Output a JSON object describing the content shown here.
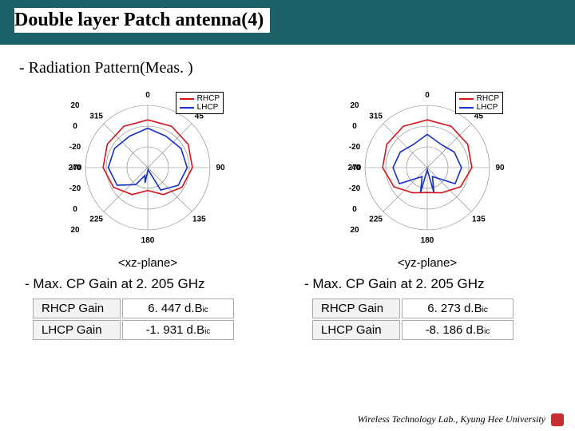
{
  "title": "Double layer Patch antenna(4)",
  "subtitle": "- Radiation Pattern(Meas. )",
  "colors": {
    "header_bg": "#1d6168",
    "rhcp": "#d4141a",
    "lhcp": "#1430c8",
    "grid": "#808080",
    "axis_text": "#000000"
  },
  "legend": {
    "rhcp": "RHCP",
    "lhcp": "LHCP"
  },
  "polar": {
    "angle_labels": [
      "0",
      "45",
      "90",
      "135",
      "180",
      "225",
      "270",
      "315"
    ],
    "radial_labels_left": [
      "20",
      "0",
      "-20",
      "-40",
      "-40",
      "-20",
      "0",
      "20"
    ],
    "radial_ticks": [
      -40,
      -20,
      0,
      20
    ],
    "rlim": [
      -40,
      20
    ],
    "label_fontsize": 10
  },
  "charts": {
    "xz": {
      "plane_label": "<xz-plane>",
      "gain_title": "- Max. CP Gain at 2. 205 GHz",
      "rhcp_label": "RHCP Gain",
      "rhcp_value": "6. 447 d.B",
      "rhcp_unit": "ic",
      "lhcp_label": "LHCP Gain",
      "lhcp_value": "-1. 931 d.B",
      "lhcp_unit": "ic",
      "rhcp_data": [
        {
          "ang": 0,
          "r": 6
        },
        {
          "ang": 30,
          "r": 6
        },
        {
          "ang": 60,
          "r": 5
        },
        {
          "ang": 90,
          "r": 3
        },
        {
          "ang": 120,
          "r": -2
        },
        {
          "ang": 150,
          "r": -10
        },
        {
          "ang": 180,
          "r": -18
        },
        {
          "ang": 210,
          "r": -10
        },
        {
          "ang": 240,
          "r": -2
        },
        {
          "ang": 270,
          "r": 3
        },
        {
          "ang": 300,
          "r": 5
        },
        {
          "ang": 330,
          "r": 6
        },
        {
          "ang": 360,
          "r": 6
        }
      ],
      "lhcp_data": [
        {
          "ang": 0,
          "r": -2
        },
        {
          "ang": 30,
          "r": -5
        },
        {
          "ang": 60,
          "r": -3
        },
        {
          "ang": 90,
          "r": -2
        },
        {
          "ang": 120,
          "r": -6
        },
        {
          "ang": 150,
          "r": -15
        },
        {
          "ang": 170,
          "r": -38
        },
        {
          "ang": 190,
          "r": -25
        },
        {
          "ang": 200,
          "r": -32
        },
        {
          "ang": 215,
          "r": -20
        },
        {
          "ang": 240,
          "r": -6
        },
        {
          "ang": 270,
          "r": -2
        },
        {
          "ang": 300,
          "r": -3
        },
        {
          "ang": 330,
          "r": -5
        },
        {
          "ang": 360,
          "r": -2
        }
      ]
    },
    "yz": {
      "plane_label": "<yz-plane>",
      "gain_title": "- Max. CP Gain at 2. 205 GHz",
      "rhcp_label": "RHCP Gain",
      "rhcp_value": "6. 273 d.B",
      "rhcp_unit": "ic",
      "lhcp_label": "LHCP Gain",
      "lhcp_value": "-8. 186 d.B",
      "lhcp_unit": "ic",
      "rhcp_data": [
        {
          "ang": 0,
          "r": 6
        },
        {
          "ang": 30,
          "r": 6
        },
        {
          "ang": 60,
          "r": 5
        },
        {
          "ang": 90,
          "r": 3
        },
        {
          "ang": 120,
          "r": -3
        },
        {
          "ang": 150,
          "r": -12
        },
        {
          "ang": 180,
          "r": -16
        },
        {
          "ang": 210,
          "r": -12
        },
        {
          "ang": 240,
          "r": -3
        },
        {
          "ang": 270,
          "r": 3
        },
        {
          "ang": 300,
          "r": 5
        },
        {
          "ang": 330,
          "r": 6
        },
        {
          "ang": 360,
          "r": 6
        }
      ],
      "lhcp_data": [
        {
          "ang": 0,
          "r": -8
        },
        {
          "ang": 30,
          "r": -14
        },
        {
          "ang": 60,
          "r": -10
        },
        {
          "ang": 90,
          "r": -7
        },
        {
          "ang": 120,
          "r": -9
        },
        {
          "ang": 150,
          "r": -30
        },
        {
          "ang": 165,
          "r": -15
        },
        {
          "ang": 180,
          "r": -38
        },
        {
          "ang": 195,
          "r": -15
        },
        {
          "ang": 210,
          "r": -30
        },
        {
          "ang": 240,
          "r": -9
        },
        {
          "ang": 270,
          "r": -7
        },
        {
          "ang": 300,
          "r": -10
        },
        {
          "ang": 330,
          "r": -14
        },
        {
          "ang": 360,
          "r": -8
        }
      ]
    }
  },
  "footer": "Wireless Technology Lab., Kyung Hee University"
}
